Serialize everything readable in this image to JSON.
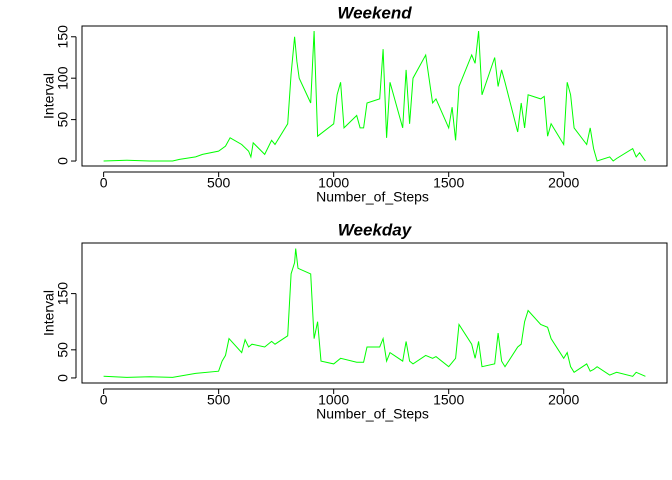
{
  "chart_data": [
    {
      "type": "line",
      "title": "Weekend",
      "x_label": "Number_of_Steps",
      "y_label": "Interval",
      "xlim": [
        -94,
        2449
      ],
      "ylim": [
        -6,
        163
      ],
      "xticks": [
        0,
        500,
        1000,
        1500,
        2000
      ],
      "yticks": [
        0,
        50,
        100,
        150
      ],
      "series": [
        {
          "color": "#00ff00",
          "x": [
            0,
            100,
            200,
            300,
            330,
            400,
            430,
            500,
            530,
            550,
            600,
            630,
            640,
            650,
            700,
            730,
            745,
            800,
            815,
            830,
            840,
            850,
            900,
            915,
            930,
            1000,
            1015,
            1030,
            1045,
            1100,
            1115,
            1130,
            1145,
            1200,
            1215,
            1230,
            1245,
            1300,
            1315,
            1330,
            1345,
            1400,
            1430,
            1445,
            1500,
            1515,
            1530,
            1545,
            1600,
            1615,
            1630,
            1645,
            1700,
            1715,
            1730,
            1745,
            1800,
            1815,
            1830,
            1845,
            1900,
            1915,
            1930,
            1945,
            2000,
            2015,
            2030,
            2045,
            2100,
            2115,
            2130,
            2145,
            2200,
            2215,
            2230,
            2300,
            2315,
            2330,
            2355
          ],
          "values": [
            0,
            1,
            0,
            0,
            2,
            5,
            8,
            12,
            18,
            28,
            20,
            12,
            5,
            22,
            8,
            25,
            20,
            45,
            105,
            150,
            120,
            100,
            70,
            157,
            30,
            45,
            80,
            95,
            40,
            55,
            40,
            40,
            70,
            75,
            135,
            28,
            95,
            40,
            110,
            45,
            100,
            128,
            70,
            75,
            40,
            65,
            25,
            90,
            128,
            118,
            157,
            80,
            125,
            90,
            110,
            95,
            35,
            70,
            40,
            80,
            75,
            78,
            30,
            45,
            20,
            95,
            80,
            40,
            20,
            40,
            15,
            0,
            5,
            0,
            3,
            15,
            5,
            10,
            0
          ]
        }
      ]
    },
    {
      "type": "line",
      "title": "Weekday",
      "x_label": "Number_of_Steps",
      "y_label": "Interval",
      "xlim": [
        -94,
        2449
      ],
      "ylim": [
        -9,
        240
      ],
      "xticks": [
        0,
        500,
        1000,
        1500,
        2000
      ],
      "yticks": [
        0,
        50,
        150
      ],
      "series": [
        {
          "color": "#00ff00",
          "x": [
            0,
            100,
            200,
            300,
            400,
            500,
            515,
            530,
            545,
            600,
            615,
            630,
            645,
            700,
            730,
            745,
            800,
            815,
            830,
            835,
            845,
            900,
            915,
            930,
            945,
            1000,
            1030,
            1100,
            1130,
            1145,
            1200,
            1215,
            1230,
            1245,
            1300,
            1315,
            1330,
            1345,
            1400,
            1430,
            1445,
            1500,
            1530,
            1545,
            1600,
            1615,
            1630,
            1645,
            1700,
            1715,
            1730,
            1745,
            1800,
            1815,
            1830,
            1845,
            1900,
            1930,
            1945,
            2000,
            2015,
            2030,
            2045,
            2100,
            2115,
            2130,
            2145,
            2200,
            2230,
            2300,
            2315,
            2355
          ],
          "values": [
            3,
            1,
            2,
            1,
            8,
            12,
            30,
            40,
            70,
            45,
            68,
            55,
            60,
            55,
            65,
            60,
            75,
            185,
            205,
            230,
            195,
            185,
            70,
            100,
            30,
            25,
            35,
            28,
            28,
            55,
            55,
            70,
            30,
            45,
            30,
            65,
            30,
            25,
            40,
            35,
            38,
            20,
            35,
            95,
            60,
            35,
            65,
            20,
            25,
            80,
            30,
            20,
            55,
            60,
            100,
            120,
            95,
            90,
            70,
            35,
            45,
            20,
            10,
            25,
            12,
            15,
            20,
            5,
            10,
            3,
            10,
            3
          ]
        }
      ]
    }
  ]
}
